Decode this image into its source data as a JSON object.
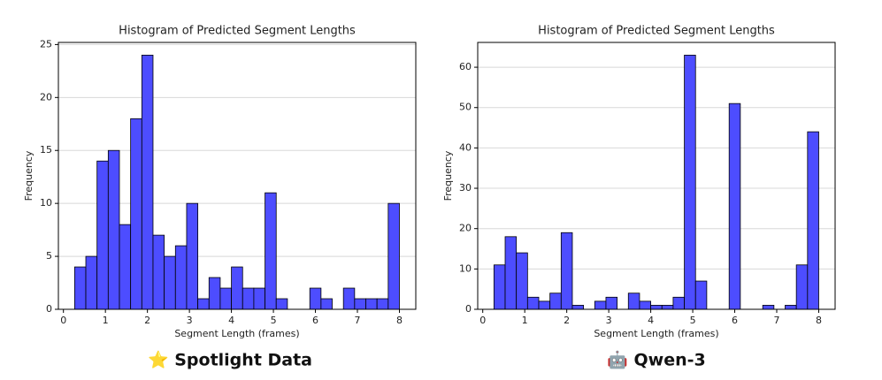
{
  "chart_data": [
    {
      "type": "histogram",
      "title": "Histogram of Predicted Segment Lengths",
      "x_label": "Segment Length (frames)",
      "y_label": "Frequency",
      "bins": [
        0.2667,
        0.5333,
        0.8,
        1.0667,
        1.3333,
        1.6,
        1.8667,
        2.1333,
        2.4,
        2.6667,
        2.9333,
        3.2,
        3.4667,
        3.7333,
        4.0,
        4.2667,
        4.5333,
        4.8,
        5.0667,
        5.3333,
        5.6,
        5.8667,
        6.1333,
        6.4,
        6.6667,
        6.9333,
        7.2,
        7.4667,
        7.7333,
        8.0
      ],
      "values": [
        4,
        5,
        14,
        15,
        8,
        18,
        24,
        7,
        5,
        6,
        10,
        1,
        3,
        2,
        4,
        2,
        2,
        11,
        1,
        0,
        0,
        2,
        1,
        0,
        2,
        1,
        1,
        1,
        10
      ],
      "color": "#4d4dff",
      "edgecolor": "#000000",
      "xlim": [
        -0.12,
        8.39
      ],
      "xticks": [
        0,
        1,
        2,
        3,
        4,
        5,
        6,
        7,
        8
      ],
      "ylim": [
        0,
        25.2
      ],
      "yticks": [
        0,
        5,
        10,
        15,
        20,
        25
      ],
      "grid": true
    },
    {
      "type": "histogram",
      "title": "Histogram of Predicted Segment Lengths",
      "x_label": "Segment Length (frames)",
      "y_label": "Frequency",
      "bins": [
        0.2667,
        0.5333,
        0.8,
        1.0667,
        1.3333,
        1.6,
        1.8667,
        2.1333,
        2.4,
        2.6667,
        2.9333,
        3.2,
        3.4667,
        3.7333,
        4.0,
        4.2667,
        4.5333,
        4.8,
        5.0667,
        5.3333,
        5.6,
        5.8667,
        6.1333,
        6.4,
        6.6667,
        6.9333,
        7.2,
        7.4667,
        7.7333,
        8.0
      ],
      "values": [
        11,
        18,
        14,
        3,
        2,
        4,
        19,
        1,
        0,
        2,
        3,
        0,
        4,
        2,
        1,
        1,
        3,
        63,
        7,
        0,
        0,
        51,
        0,
        0,
        1,
        0,
        1,
        11,
        44
      ],
      "color": "#4d4dff",
      "edgecolor": "#000000",
      "xlim": [
        -0.12,
        8.39
      ],
      "xticks": [
        0,
        1,
        2,
        3,
        4,
        5,
        6,
        7,
        8
      ],
      "ylim": [
        0,
        66.15
      ],
      "yticks": [
        0,
        10,
        20,
        30,
        40,
        50,
        60
      ],
      "grid": true
    }
  ],
  "captions": [
    "⭐ Spotlight Data",
    "🤖 Qwen-3"
  ]
}
